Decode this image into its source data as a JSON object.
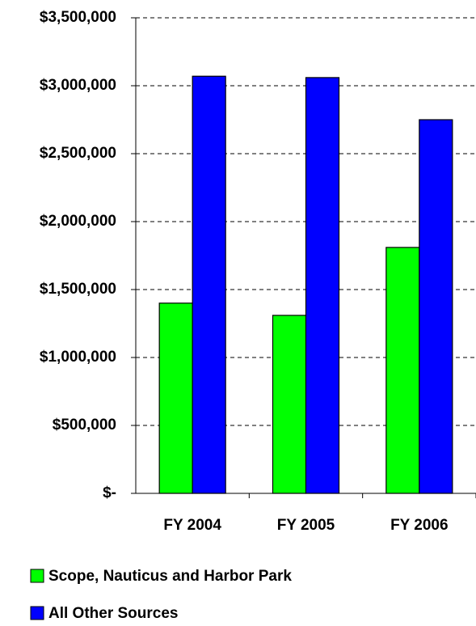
{
  "chart_data": {
    "type": "bar",
    "categories": [
      "FY 2004",
      "FY 2005",
      "FY 2006"
    ],
    "series": [
      {
        "name": "Scope, Nauticus and Harbor Park",
        "color": "#00ff00",
        "values": [
          1400000,
          1310000,
          1810000
        ]
      },
      {
        "name": "All Other Sources",
        "color": "#0000ff",
        "values": [
          3070000,
          3060000,
          2750000
        ]
      }
    ],
    "ylim": [
      0,
      3500000
    ],
    "yticks": [
      {
        "value": 0,
        "label": "$-"
      },
      {
        "value": 500000,
        "label": "$500,000"
      },
      {
        "value": 1000000,
        "label": "$1,000,000"
      },
      {
        "value": 1500000,
        "label": "$1,500,000"
      },
      {
        "value": 2000000,
        "label": "$2,000,000"
      },
      {
        "value": 2500000,
        "label": "$2,500,000"
      },
      {
        "value": 3000000,
        "label": "$3,000,000"
      },
      {
        "value": 3500000,
        "label": "$3,500,000"
      }
    ],
    "grid": true,
    "legend": "bottom"
  }
}
